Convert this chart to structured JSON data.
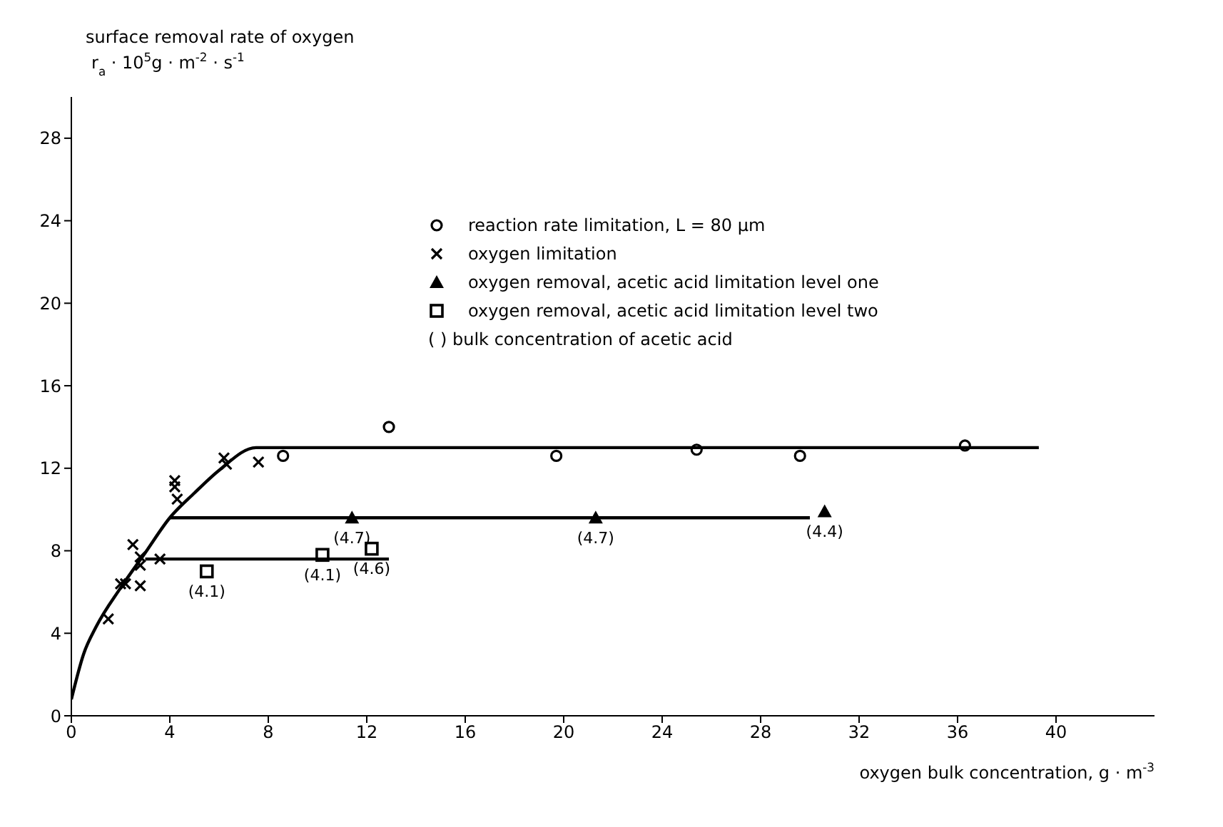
{
  "chart_data": {
    "type": "scatter",
    "ylabel": "surface removal rate of oxygen\nr$_{a}$ · 10$^{5}$g · m$^{-2}$ · s$^{-1}$",
    "xlabel": "oxygen bulk concentration, g · m$^{-3}$",
    "xlim": [
      0,
      44
    ],
    "xticks": [
      0,
      4,
      8,
      12,
      16,
      20,
      24,
      28,
      32,
      36,
      40
    ],
    "ylim": [
      0,
      30
    ],
    "yticks": [
      0,
      4,
      8,
      12,
      16,
      20,
      24,
      28
    ],
    "legend": "top right",
    "series": [
      {
        "name": "reaction rate limitation,  L = 80 μm",
        "color": "#000000",
        "marker": "circle",
        "x": [
          8.6,
          12.9,
          19.7,
          25.4,
          29.6,
          36.3
        ],
        "values": [
          12.6,
          14.0,
          12.6,
          12.9,
          12.6,
          13.1
        ]
      },
      {
        "name": "oxygen limitation",
        "color": "#000000",
        "marker": "cross",
        "x": [
          1.5,
          2.0,
          2.2,
          2.8,
          2.5,
          2.8,
          2.8,
          3.6,
          4.2,
          4.2,
          4.3,
          6.2,
          6.3,
          7.6
        ],
        "values": [
          4.7,
          6.4,
          6.4,
          6.3,
          8.3,
          7.7,
          7.3,
          7.6,
          11.4,
          11.1,
          10.5,
          12.5,
          12.2,
          12.3
        ]
      },
      {
        "name": "oxygen removal, acetic acid limitation level one",
        "color": "#000000",
        "marker": "triangle",
        "x": [
          11.4,
          21.3,
          30.6
        ],
        "values": [
          9.6,
          9.6,
          9.9
        ]
      },
      {
        "name": "oxygen removal, acetic acid limitation level two",
        "color": "#000000",
        "marker": "square",
        "x": [
          5.5,
          10.2,
          12.2
        ],
        "values": [
          7.0,
          7.8,
          8.1
        ]
      },
      {
        "type": "line",
        "color": "#000000",
        "marker": "none",
        "line_style": "solid",
        "x": [
          0,
          0.5,
          1,
          2,
          3,
          4,
          5,
          6,
          7.5,
          39.3
        ],
        "values": [
          0.8,
          3.0,
          4.3,
          6.2,
          7.9,
          9.6,
          10.8,
          11.9,
          13.0,
          13.0
        ]
      },
      {
        "type": "line",
        "color": "#000000",
        "marker": "none",
        "line_style": "solid",
        "x": [
          4,
          30
        ],
        "values": [
          9.6,
          9.6
        ]
      },
      {
        "type": "line",
        "color": "#000000",
        "marker": "none",
        "line_style": "solid",
        "x": [
          3,
          12.9
        ],
        "values": [
          7.6,
          7.6
        ]
      }
    ],
    "annotations": [
      "( )   bulk concentration of acetic acid",
      {
        "text": "(4.7)",
        "x": 11.4,
        "y": 9.6
      },
      {
        "text": "(4.7)",
        "x": 21.3,
        "y": 9.6
      },
      {
        "text": "(4.4)",
        "x": 30.6,
        "y": 9.9
      },
      {
        "text": "(4.1)",
        "x": 5.5,
        "y": 7.0
      },
      {
        "text": "(4.1)",
        "x": 10.2,
        "y": 7.8
      },
      {
        "text": "(4.6)",
        "x": 12.2,
        "y": 8.1
      }
    ]
  }
}
